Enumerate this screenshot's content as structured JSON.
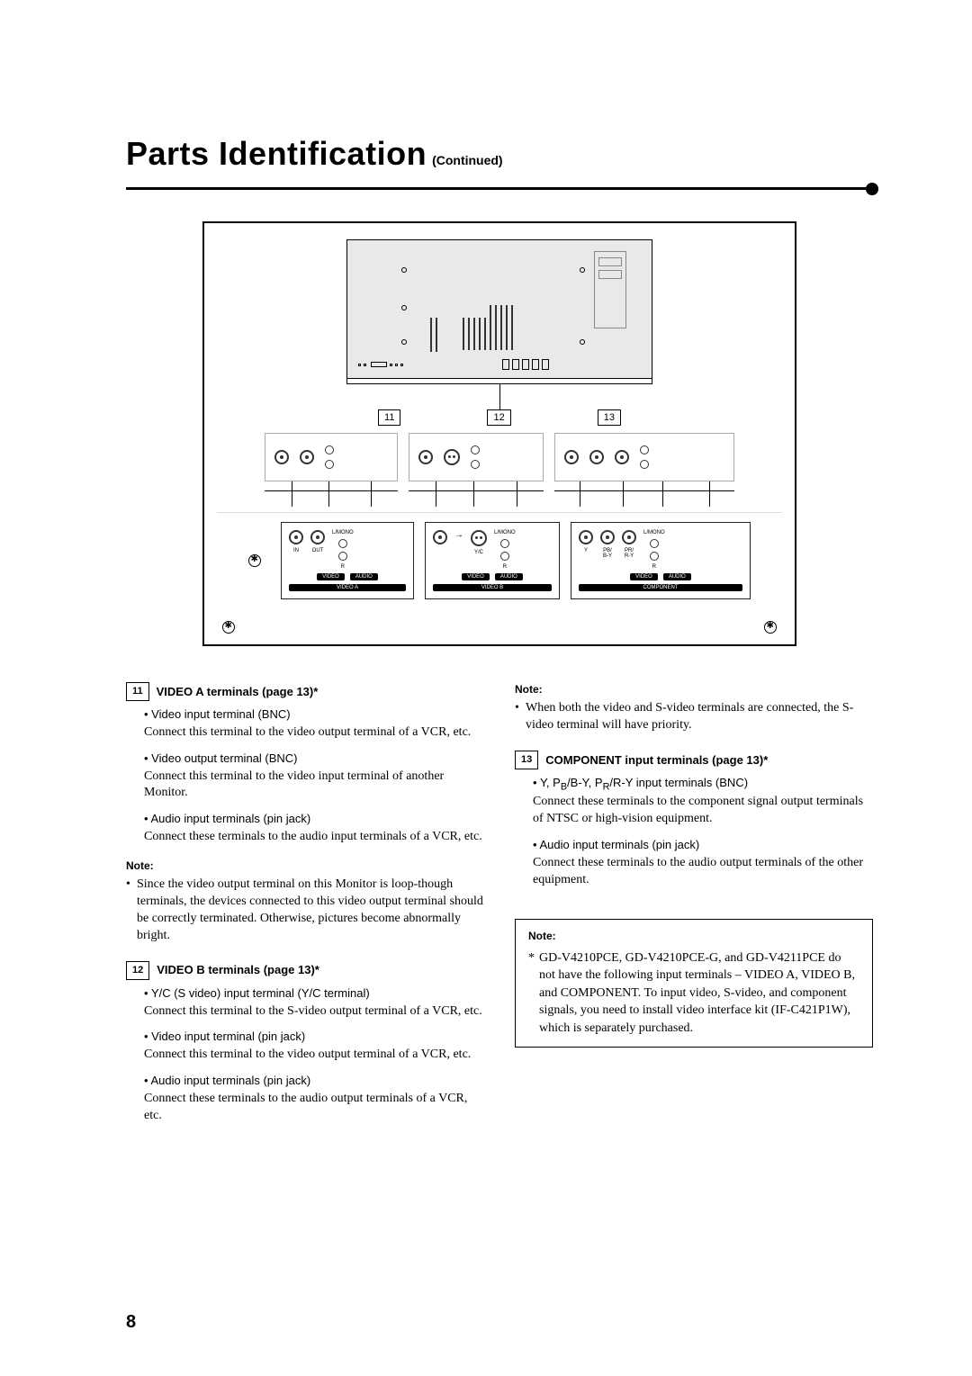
{
  "title": {
    "main": "Parts Identification",
    "sub": "(Continued)"
  },
  "callouts": {
    "a": "11",
    "b": "12",
    "c": "13"
  },
  "panel": {
    "labels": {
      "lmono": "L/MONO",
      "r": "R",
      "in": "IN",
      "out": "OUT",
      "yc": "Y/C",
      "y": "Y",
      "pb": "PB/\nB-Y",
      "pr": "PR/\nR-Y",
      "video_rev": "VIDEO",
      "audio_rev": "AUDIO",
      "component_rev": "COMPONENT",
      "video_a_rev": "VIDEO A",
      "video_b_rev": "VIDEO B"
    }
  },
  "section11": {
    "heading": "VIDEO A terminals (page 13)*",
    "item1_lead": "Video input terminal (BNC)",
    "item1_body": "Connect this terminal to the video output terminal of a VCR, etc.",
    "item2_lead": "Video output terminal (BNC)",
    "item2_body": "Connect this terminal to the video input terminal of another Monitor.",
    "item3_lead": "Audio input terminals (pin jack)",
    "item3_body": "Connect these terminals to the audio input terminals of a VCR, etc.",
    "note_label": "Note:",
    "note_body": "Since the video output terminal on this Monitor is loop-though terminals, the devices connected to this video output terminal should be correctly terminated. Otherwise, pictures become abnormally bright."
  },
  "section12": {
    "heading": "VIDEO B terminals (page 13)*",
    "item1_lead": "Y/C (S video) input terminal (Y/C terminal)",
    "item1_body": "Connect this terminal to the S-video output terminal of a VCR, etc.",
    "item2_lead": "Video input terminal (pin jack)",
    "item2_body": "Connect this terminal to the video output terminal of a VCR, etc.",
    "item3_lead": "Audio input terminals (pin jack)",
    "item3_body": "Connect these terminals to the audio output terminals of a VCR, etc."
  },
  "right_top_note": {
    "label": "Note:",
    "body": "When both the video and S-video terminals are connected, the S-video terminal will have priority."
  },
  "section13": {
    "heading": "COMPONENT input terminals (page 13)*",
    "item1_lead_html": "Y, P<sub>B</sub>/B-Y, P<sub>R</sub>/R-Y input terminals (BNC)",
    "item1_body": "Connect these terminals to the component signal output terminals of NTSC or high-vision equipment.",
    "item2_lead": "Audio input terminals (pin jack)",
    "item2_body": "Connect these terminals to the audio output terminals of the other equipment."
  },
  "footnote": {
    "label": "Note:",
    "body": "GD-V4210PCE, GD-V4210PCE-G, and GD-V4211PCE do not have the following input terminals – VIDEO A, VIDEO B, and COMPONENT. To input video, S-video, and component signals, you need to install video interface kit (IF-C421P1W), which is separately purchased."
  },
  "page_number": "8"
}
